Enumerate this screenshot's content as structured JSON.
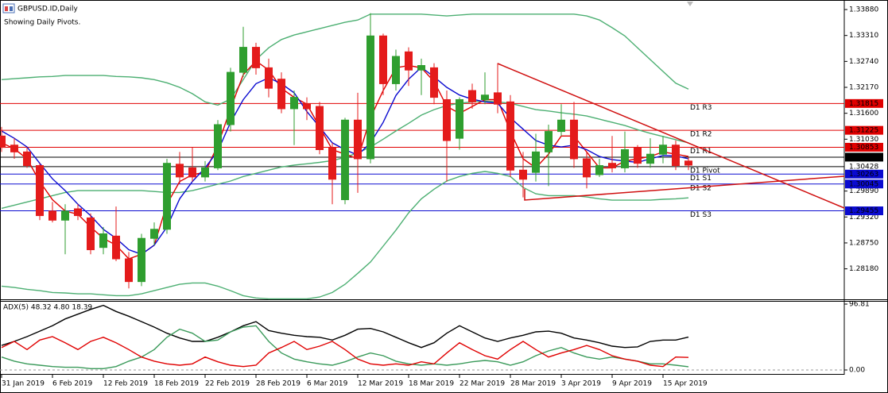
{
  "chart_data": [
    {
      "type": "candlestick",
      "title": "GBPUSD.ID,Daily",
      "subtitle": "Showing Daily Pivots.",
      "categories": [
        "31 Jan 2019",
        null,
        null,
        null,
        "6 Feb 2019",
        null,
        null,
        null,
        "12 Feb 2019",
        null,
        null,
        null,
        "18 Feb 2019",
        null,
        null,
        null,
        "22 Feb 2019",
        null,
        null,
        null,
        "28 Feb 2019",
        null,
        null,
        null,
        "6 Mar 2019",
        null,
        null,
        null,
        "12 Mar 2019",
        null,
        null,
        null,
        "18 Mar 2019",
        null,
        null,
        null,
        "22 Mar 2019",
        null,
        null,
        null,
        "28 Mar 2019",
        null,
        null,
        null,
        "3 Apr 2019",
        null,
        null,
        null,
        "9 Apr 2019",
        null,
        null,
        null,
        "15 Apr 2019",
        null,
        null
      ],
      "open": [
        1.311,
        1.309,
        1.3075,
        1.3045,
        1.2945,
        1.2925,
        1.295,
        1.293,
        1.2865,
        1.289,
        1.284,
        1.279,
        1.2885,
        1.2905,
        1.3048,
        1.304,
        1.302,
        1.304,
        1.3135,
        1.325,
        1.3305,
        1.326,
        1.3235,
        1.317,
        1.318,
        1.3175,
        1.3085,
        1.297,
        1.3145,
        1.306,
        1.333,
        1.3225,
        1.3295,
        1.3255,
        1.326,
        1.319,
        1.3105,
        1.321,
        1.319,
        1.3205,
        1.3185,
        1.3035,
        1.303,
        1.3075,
        1.312,
        1.3145,
        1.306,
        1.3025,
        1.305,
        1.304,
        1.3085,
        1.305,
        1.307,
        1.309,
        1.3055
      ],
      "high": [
        1.313,
        1.3105,
        1.3085,
        1.305,
        1.2965,
        1.296,
        1.296,
        1.294,
        1.291,
        1.2955,
        1.2855,
        1.2895,
        1.292,
        1.306,
        1.3075,
        1.3085,
        1.3055,
        1.3145,
        1.326,
        1.335,
        1.3315,
        1.328,
        1.325,
        1.321,
        1.3195,
        1.3185,
        1.3095,
        1.315,
        1.3205,
        1.338,
        1.3335,
        1.33,
        1.3305,
        1.328,
        1.327,
        1.321,
        1.3195,
        1.3225,
        1.325,
        1.327,
        1.32,
        1.3075,
        1.3115,
        1.3135,
        1.318,
        1.3185,
        1.3075,
        1.306,
        1.311,
        1.312,
        1.309,
        1.3105,
        1.311,
        1.31,
        1.3063
      ],
      "low": [
        1.3075,
        1.306,
        1.304,
        1.2925,
        1.292,
        1.285,
        1.2925,
        1.285,
        1.285,
        1.2835,
        1.2775,
        1.278,
        1.287,
        1.2895,
        1.3005,
        1.301,
        1.301,
        1.3035,
        1.312,
        1.324,
        1.3245,
        1.3195,
        1.316,
        1.309,
        1.3145,
        1.307,
        1.296,
        1.296,
        1.2985,
        1.305,
        1.32,
        1.321,
        1.322,
        1.32,
        1.318,
        1.301,
        1.308,
        1.317,
        1.318,
        1.316,
        1.302,
        1.2975,
        1.301,
        1.3,
        1.311,
        1.304,
        1.2995,
        1.302,
        1.303,
        1.303,
        1.304,
        1.304,
        1.305,
        1.3035,
        1.3035
      ],
      "close": [
        1.3085,
        1.3075,
        1.3045,
        1.2935,
        1.2925,
        1.2945,
        1.2935,
        1.286,
        1.2895,
        1.284,
        1.279,
        1.2885,
        1.2905,
        1.305,
        1.302,
        1.302,
        1.304,
        1.3135,
        1.325,
        1.3305,
        1.326,
        1.3215,
        1.317,
        1.3195,
        1.317,
        1.308,
        1.3015,
        1.3145,
        1.306,
        1.333,
        1.3225,
        1.3285,
        1.3255,
        1.3265,
        1.3195,
        1.31,
        1.319,
        1.3185,
        1.32,
        1.318,
        1.3035,
        1.3015,
        1.3075,
        1.312,
        1.3145,
        1.306,
        1.302,
        1.3045,
        1.304,
        1.308,
        1.305,
        1.307,
        1.309,
        1.3045,
        1.3046
      ],
      "up_color": "#2f9e2f",
      "down_color": "#e41b1b",
      "series": [
        {
          "color": "#4caf72",
          "values": [
            1.3234,
            1.3236,
            1.3238,
            1.324,
            1.3241,
            1.3243,
            1.3243,
            1.3243,
            1.3243,
            1.3241,
            1.324,
            1.3238,
            1.3234,
            1.3227,
            1.3217,
            1.3203,
            1.3185,
            1.3178,
            1.3191,
            1.3234,
            1.3278,
            1.3304,
            1.3322,
            1.3332,
            1.3339,
            1.3346,
            1.3353,
            1.336,
            1.3365,
            1.3378,
            1.3378,
            1.3378,
            1.3378,
            1.3378,
            1.3376,
            1.3374,
            1.3376,
            1.3378,
            1.3378,
            1.3378,
            1.3378,
            1.3378,
            1.3378,
            1.3378,
            1.3378,
            1.3378,
            1.3374,
            1.3365,
            1.3348,
            1.333,
            1.3304,
            1.3278,
            1.3252,
            1.3226,
            1.3213
          ]
        },
        {
          "color": "#4caf72",
          "values": [
            1.2951,
            1.2958,
            1.2965,
            1.2972,
            1.2979,
            1.2986,
            1.299,
            1.299,
            1.299,
            1.299,
            1.299,
            1.299,
            1.2988,
            1.2986,
            1.2986,
            1.299,
            1.2997,
            1.3004,
            1.3011,
            1.3021,
            1.3028,
            1.3035,
            1.3042,
            1.3046,
            1.3049,
            1.3052,
            1.3056,
            1.3063,
            1.3073,
            1.3086,
            1.3103,
            1.3121,
            1.3138,
            1.3156,
            1.3168,
            1.3177,
            1.3182,
            1.3185,
            1.3187,
            1.3185,
            1.3182,
            1.3175,
            1.3168,
            1.3165,
            1.3161,
            1.3158,
            1.3154,
            1.3147,
            1.314,
            1.3133,
            1.3124,
            1.3116,
            1.3109,
            1.3102,
            1.3095
          ]
        },
        {
          "color": "#4caf72",
          "values": [
            1.278,
            1.2777,
            1.2773,
            1.277,
            1.2766,
            1.2765,
            1.2763,
            1.2763,
            1.2761,
            1.2759,
            1.2759,
            1.2763,
            1.277,
            1.2777,
            1.2784,
            1.2787,
            1.2787,
            1.278,
            1.277,
            1.2759,
            1.2754,
            1.2752,
            1.2752,
            1.2752,
            1.2752,
            1.2756,
            1.2766,
            1.2784,
            1.2808,
            1.2833,
            1.2868,
            1.2903,
            1.2941,
            1.2972,
            1.2993,
            1.3011,
            1.3021,
            1.3028,
            1.3032,
            1.3028,
            1.3021,
            1.2997,
            1.2983,
            1.2979,
            1.2979,
            1.2979,
            1.2976,
            1.2972,
            1.2969,
            1.2969,
            1.2969,
            1.2969,
            1.2971,
            1.2972,
            1.2974
          ]
        },
        {
          "color": "#e00000",
          "values": [
            1.3095,
            1.3082,
            1.306,
            1.301,
            1.297,
            1.2945,
            1.2938,
            1.291,
            1.2885,
            1.287,
            1.284,
            1.285,
            1.287,
            1.296,
            1.301,
            1.3025,
            1.303,
            1.309,
            1.317,
            1.3245,
            1.3275,
            1.3255,
            1.3215,
            1.3195,
            1.318,
            1.313,
            1.308,
            1.307,
            1.306,
            1.315,
            1.321,
            1.326,
            1.3265,
            1.326,
            1.323,
            1.3175,
            1.316,
            1.3175,
            1.319,
            1.319,
            1.312,
            1.306,
            1.304,
            1.307,
            1.311,
            1.311,
            1.3075,
            1.304,
            1.304,
            1.3055,
            1.306,
            1.3065,
            1.3075,
            1.307,
            1.3065
          ]
        },
        {
          "color": "#0a0ad0",
          "values": [
            1.3121,
            1.3105,
            1.3086,
            1.305,
            1.3016,
            1.299,
            1.296,
            1.2935,
            1.2905,
            1.2885,
            1.286,
            1.285,
            1.287,
            1.291,
            1.2972,
            1.301,
            1.304,
            1.3077,
            1.314,
            1.319,
            1.3225,
            1.3238,
            1.3225,
            1.3205,
            1.3164,
            1.313,
            1.3095,
            1.308,
            1.3068,
            1.3095,
            1.314,
            1.3199,
            1.3235,
            1.3261,
            1.324,
            1.3217,
            1.32,
            1.3191,
            1.3185,
            1.3182,
            1.315,
            1.3125,
            1.31,
            1.309,
            1.3086,
            1.309,
            1.308,
            1.3065,
            1.3058,
            1.3055,
            1.3052,
            1.306,
            1.3067,
            1.3066,
            1.306
          ]
        }
      ],
      "pivots": {
        "names": [
          "D1 R3",
          "D1 R2",
          "D1 R1",
          "D1 Pivot",
          "D1 S1",
          "D1 S2",
          "D1 S3"
        ],
        "values": [
          1.31815,
          1.31225,
          1.30853,
          1.30428,
          1.30263,
          1.30045,
          1.29455
        ],
        "value_labels": [
          "1.31815",
          "1.31225",
          "1.30853",
          "1.30428",
          "1.30263",
          "1.30045",
          "1.29455"
        ],
        "colors": [
          "#e00000",
          "#e00000",
          "#e00000",
          "#000000",
          "#0a0ad0",
          "#0a0ad0",
          "#0a0ad0"
        ],
        "boxed": [
          true,
          true,
          true,
          false,
          true,
          true,
          true
        ]
      },
      "last_price": {
        "value": 1.30635,
        "label": "1.30635",
        "color": "#000000"
      },
      "ylim": [
        1.2751,
        1.3409
      ],
      "yticks": [
        {
          "value": 1.3388,
          "label": "1.33880"
        },
        {
          "value": 1.3331,
          "label": "1.33310"
        },
        {
          "value": 1.3274,
          "label": "1.32740"
        },
        {
          "value": 1.3217,
          "label": "1.32170"
        },
        {
          "value": 1.316,
          "label": "1.31600"
        },
        {
          "value": 1.3103,
          "label": "1.31030"
        },
        {
          "value": 1.2989,
          "label": "1.29890"
        },
        {
          "value": 1.2932,
          "label": "1.29320"
        },
        {
          "value": 1.2875,
          "label": "1.28750"
        },
        {
          "value": 1.2818,
          "label": "1.28180"
        }
      ]
    },
    {
      "type": "line",
      "title": "ADX(5) 48.32 4.80 18.39",
      "series": [
        {
          "color": "#000000",
          "values": [
            36,
            42,
            49,
            57,
            65,
            75,
            82,
            89,
            95,
            86,
            79,
            71,
            63,
            54,
            47,
            42,
            42,
            48,
            56,
            65,
            71,
            58,
            54,
            51,
            49,
            48,
            44,
            51,
            60,
            61,
            56,
            48,
            40,
            33,
            40,
            54,
            65,
            56,
            47,
            42,
            47,
            51,
            56,
            57,
            54,
            47,
            44,
            40,
            35,
            33,
            34,
            42,
            44,
            44,
            48.32
          ]
        },
        {
          "color": "#3a9a5a",
          "values": [
            19,
            13,
            9,
            7,
            5,
            4,
            4,
            2,
            2,
            5,
            13,
            19,
            30,
            48,
            60,
            54,
            42,
            44,
            56,
            63,
            65,
            42,
            25,
            16,
            12,
            9,
            7,
            12,
            19,
            25,
            21,
            13,
            9,
            7,
            9,
            7,
            9,
            12,
            14,
            12,
            7,
            12,
            21,
            28,
            33,
            25,
            19,
            16,
            19,
            16,
            13,
            9,
            9,
            7,
            4.8
          ]
        },
        {
          "color": "#e00000",
          "values": [
            33,
            42,
            30,
            44,
            49,
            40,
            30,
            42,
            48,
            40,
            30,
            19,
            13,
            9,
            7,
            9,
            19,
            12,
            7,
            5,
            7,
            25,
            33,
            42,
            30,
            35,
            42,
            30,
            16,
            9,
            7,
            9,
            7,
            12,
            9,
            25,
            40,
            30,
            21,
            16,
            30,
            42,
            30,
            19,
            25,
            30,
            36,
            30,
            21,
            16,
            13,
            7,
            5,
            19,
            18.39
          ]
        }
      ],
      "ylim": [
        0,
        96.81
      ],
      "yticks": [
        96.81,
        {
          "value": 0,
          "label": "0.00"
        }
      ]
    }
  ]
}
